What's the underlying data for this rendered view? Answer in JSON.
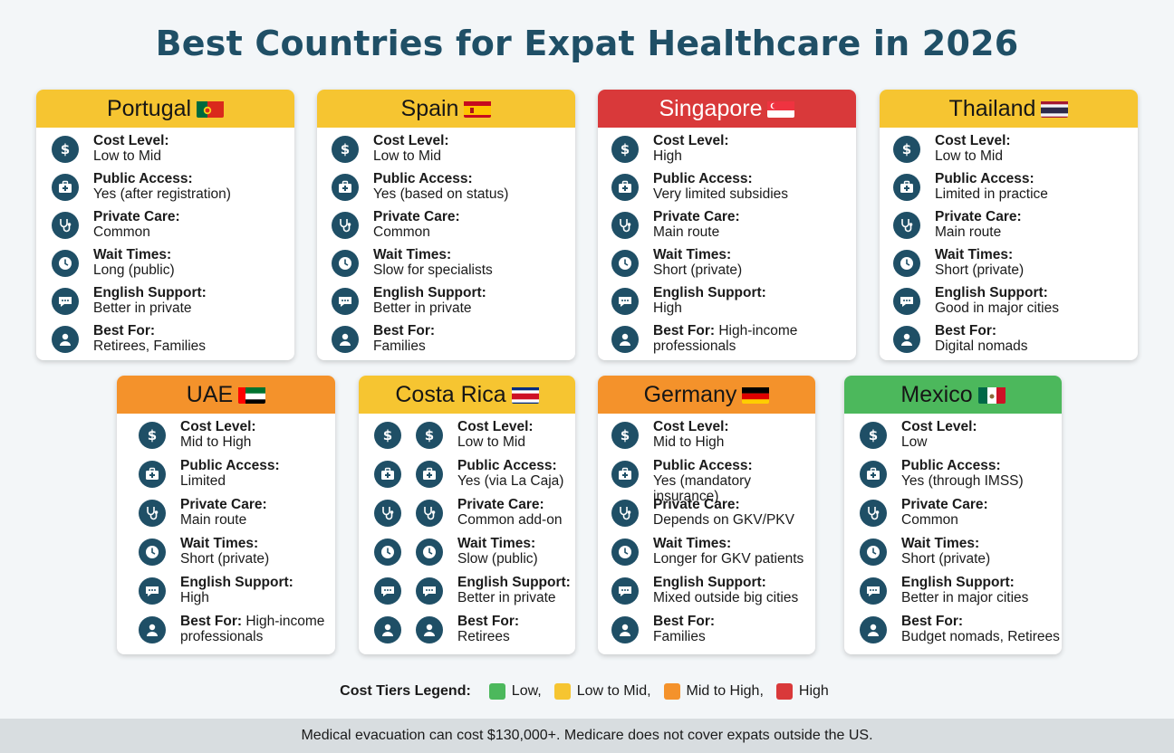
{
  "title": "Best Countries for Expat Healthcare in 2026",
  "colors": {
    "low": "#4cb85c",
    "low_to_mid": "#f6c531",
    "mid_to_high": "#f4922b",
    "high": "#d9393a",
    "icon": "#1f4f66"
  },
  "icons": {
    "cost": "dollar-icon",
    "public": "medical-kit-icon",
    "private": "stethoscope-icon",
    "wait": "clock-icon",
    "english": "chat-bubble-icon",
    "best": "person-icon"
  },
  "cards": [
    {
      "name": "Portugal",
      "flag": "portugal-flag",
      "tier": "low_to_mid",
      "cost_label": "Cost Level:",
      "cost": "Low to Mid",
      "public_label": "Public Access:",
      "public": "Yes (after registration)",
      "private_label": "Private Care:",
      "private": "Common",
      "wait_label": "Wait Times:",
      "wait": "Long (public)",
      "english_label": "English Support:",
      "english": "Better in private",
      "best_label": "Best For:",
      "best": "Retirees, Families"
    },
    {
      "name": "Spain",
      "flag": "spain-flag",
      "tier": "low_to_mid",
      "cost_label": "Cost Level:",
      "cost": "Low to Mid",
      "public_label": "Public Access:",
      "public": "Yes (based on status)",
      "private_label": "Private Care:",
      "private": "Common",
      "wait_label": "Wait Times:",
      "wait": "Slow for specialists",
      "english_label": "English Support:",
      "english": "Better in private",
      "best_label": "Best For:",
      "best": "Families"
    },
    {
      "name": "Singapore",
      "flag": "singapore-flag",
      "tier": "high",
      "cost_label": "Cost Level:",
      "cost": "High",
      "public_label": "Public Access:",
      "public": "Very limited subsidies",
      "private_label": "Private Care:",
      "private": "Main route",
      "wait_label": "Wait Times:",
      "wait": "Short (private)",
      "english_label": "English Support:",
      "english": "High",
      "best_label": "Best For:",
      "best": "High-income professionals"
    },
    {
      "name": "Thailand",
      "flag": "thailand-flag",
      "tier": "low_to_mid",
      "cost_label": "Cost Level:",
      "cost": "Low to Mid",
      "public_label": "Public Access:",
      "public": "Limited in practice",
      "private_label": "Private Care:",
      "private": "Main route",
      "wait_label": "Wait Times:",
      "wait": "Short (private)",
      "english_label": "English Support:",
      "english": "Good in major cities",
      "best_label": "Best For:",
      "best": "Digital nomads"
    },
    {
      "name": "UAE",
      "flag": "uae-flag",
      "tier": "mid_to_high",
      "cost_label": "Cost Level:",
      "cost": "Mid to High",
      "public_label": "Public Access:",
      "public": "Limited",
      "private_label": "Private Care:",
      "private": "Main route",
      "wait_label": "Wait Times:",
      "wait": "Short (private)",
      "english_label": "English Support:",
      "english": "High",
      "best_label": "Best For:",
      "best": "High-income professionals"
    },
    {
      "name": "Costa Rica",
      "flag": "costa-rica-flag",
      "tier": "low_to_mid",
      "cost_label": "Cost Level:",
      "cost": "Low to Mid",
      "public_label": "Public Access:",
      "public": "Yes (via La Caja)",
      "private_label": "Private Care:",
      "private": "Common add-on",
      "wait_label": "Wait Times:",
      "wait": "Slow (public)",
      "english_label": "English Support:",
      "english": "Better in private",
      "best_label": "Best For:",
      "best": "Retirees"
    },
    {
      "name": "Germany",
      "flag": "germany-flag",
      "tier": "mid_to_high",
      "cost_label": "Cost Level:",
      "cost": "Mid to High",
      "public_label": "Public Access:",
      "public": "Yes (mandatory insurance)",
      "private_label": "Private Care:",
      "private": "Depends on GKV/PKV",
      "wait_label": "Wait Times:",
      "wait": "Longer for GKV patients",
      "english_label": "English Support:",
      "english": "Mixed outside big cities",
      "best_label": "Best For:",
      "best": "Families"
    },
    {
      "name": "Mexico",
      "flag": "mexico-flag",
      "tier": "low",
      "cost_label": "Cost Level:",
      "cost": "Low",
      "public_label": "Public Access:",
      "public": "Yes (through IMSS)",
      "private_label": "Private Care:",
      "private": "Common",
      "wait_label": "Wait Times:",
      "wait": "Short (private)",
      "english_label": "English Support:",
      "english": "Better in major cities",
      "best_label": "Best For:",
      "best": "Budget nomads, Retirees"
    }
  ],
  "legend": {
    "title": "Cost Tiers Legend:",
    "low": "Low,",
    "low_to_mid": "Low to Mid,",
    "mid_to_high": "Mid to High,",
    "high": "High"
  },
  "footer": "Medical evacuation can cost $130,000+. Medicare does not cover expats outside the US."
}
